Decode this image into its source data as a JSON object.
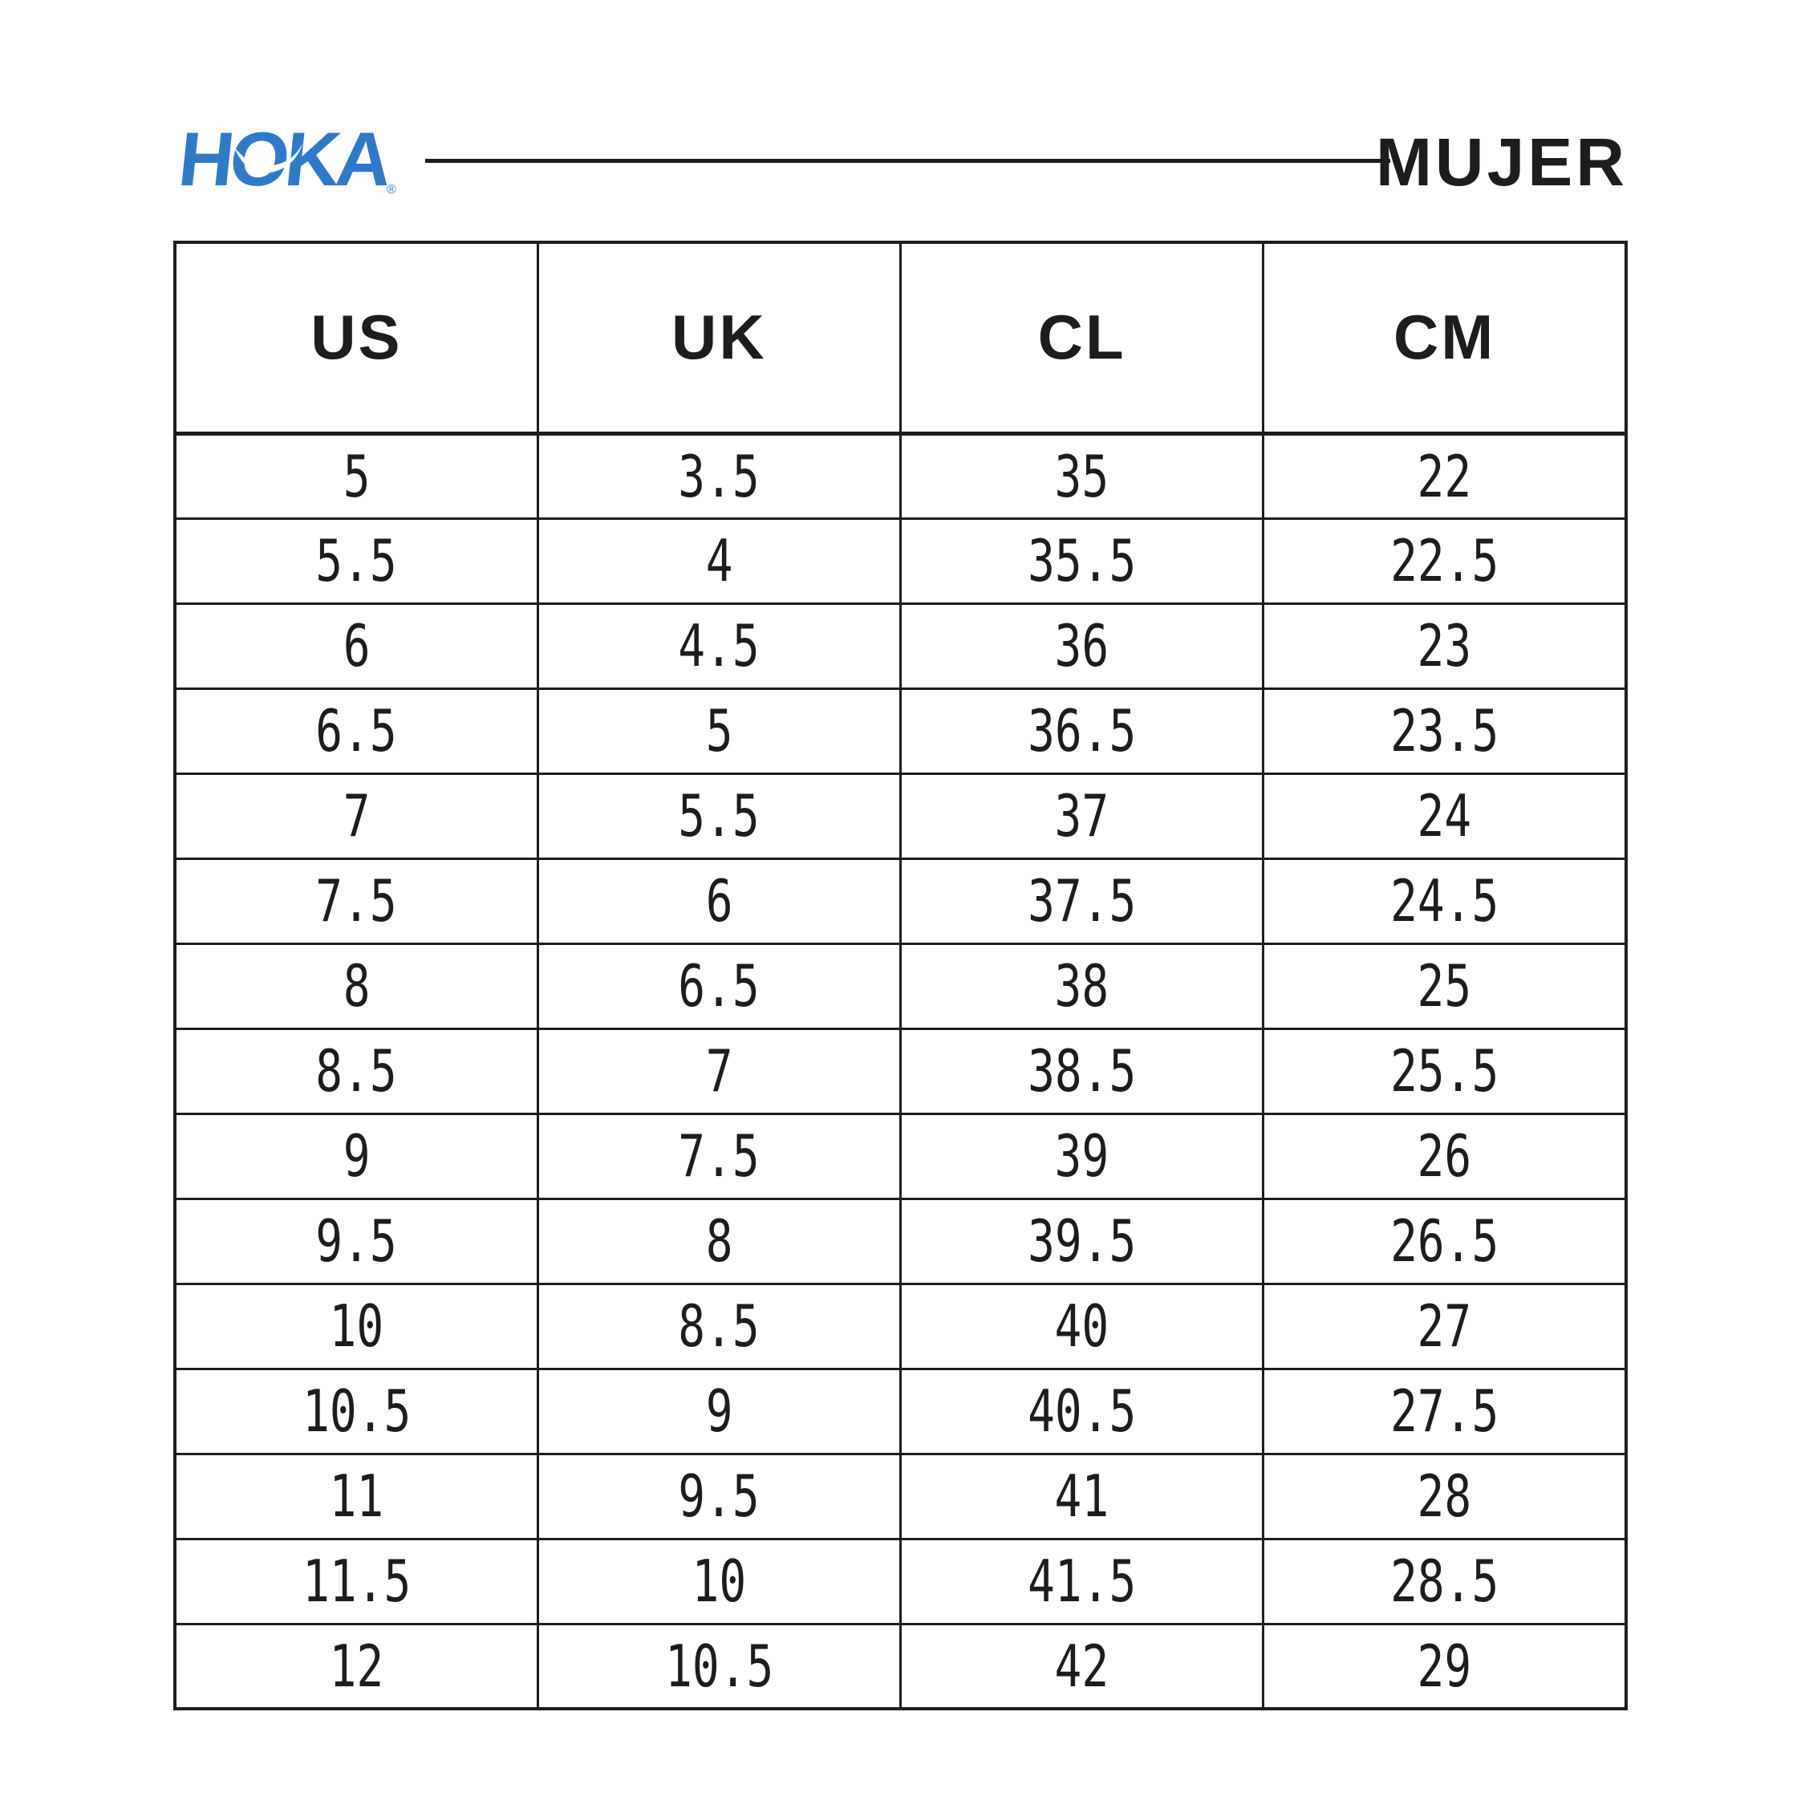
{
  "header": {
    "brand": "HOKA",
    "registered": "®",
    "title": "MUJER"
  },
  "colors": {
    "brand_blue": "#2f7ac7",
    "ink": "#1d1d1b",
    "background": "#ffffff"
  },
  "chart_data": {
    "type": "table",
    "title": "MUJER",
    "columns": [
      "US",
      "UK",
      "CL",
      "CM"
    ],
    "rows": [
      [
        "5",
        "3.5",
        "35",
        "22"
      ],
      [
        "5.5",
        "4",
        "35.5",
        "22.5"
      ],
      [
        "6",
        "4.5",
        "36",
        "23"
      ],
      [
        "6.5",
        "5",
        "36.5",
        "23.5"
      ],
      [
        "7",
        "5.5",
        "37",
        "24"
      ],
      [
        "7.5",
        "6",
        "37.5",
        "24.5"
      ],
      [
        "8",
        "6.5",
        "38",
        "25"
      ],
      [
        "8.5",
        "7",
        "38.5",
        "25.5"
      ],
      [
        "9",
        "7.5",
        "39",
        "26"
      ],
      [
        "9.5",
        "8",
        "39.5",
        "26.5"
      ],
      [
        "10",
        "8.5",
        "40",
        "27"
      ],
      [
        "10.5",
        "9",
        "40.5",
        "27.5"
      ],
      [
        "11",
        "9.5",
        "41",
        "28"
      ],
      [
        "11.5",
        "10",
        "41.5",
        "28.5"
      ],
      [
        "12",
        "10.5",
        "42",
        "29"
      ]
    ]
  }
}
